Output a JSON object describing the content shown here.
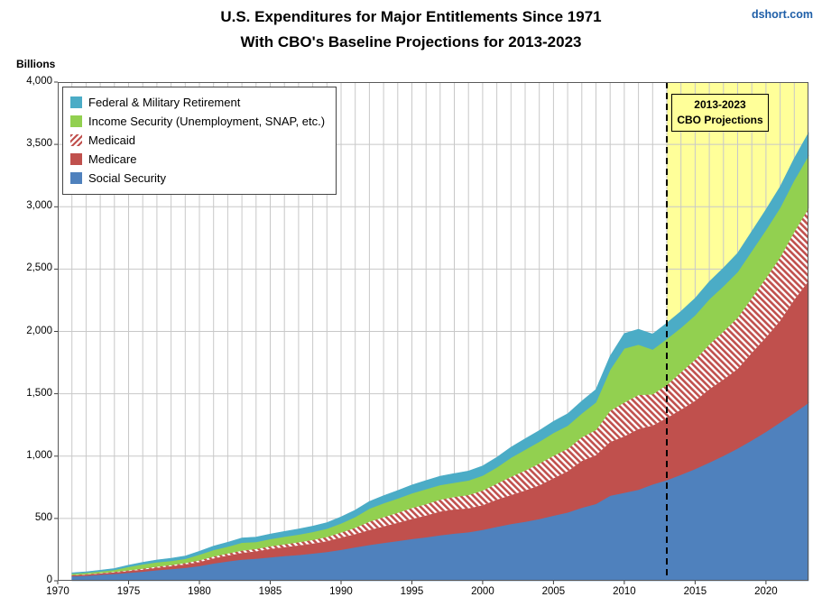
{
  "header": {
    "watermark": "dshort.com"
  },
  "chart_data": {
    "type": "area",
    "stacked": true,
    "title": "U.S. Expenditures for Major Entitlements Since 1971",
    "subtitle": "With CBO's Baseline Projections for 2013-2023",
    "ylabel": "Billions",
    "units": "billions of dollars",
    "x_start": 1971,
    "x_end": 2023,
    "x_axis": {
      "min": 1970,
      "max": 2023,
      "ticks": [
        {
          "value": 1970,
          "label": "1970"
        },
        {
          "value": 1975,
          "label": "1975"
        },
        {
          "value": 1980,
          "label": "1980"
        },
        {
          "value": 1985,
          "label": "1985"
        },
        {
          "value": 1990,
          "label": "1990"
        },
        {
          "value": 1995,
          "label": "1995"
        },
        {
          "value": 2000,
          "label": "2000"
        },
        {
          "value": 2005,
          "label": "2005"
        },
        {
          "value": 2010,
          "label": "2010"
        },
        {
          "value": 2015,
          "label": "2015"
        },
        {
          "value": 2020,
          "label": "2020"
        }
      ]
    },
    "y_axis": {
      "min": 0,
      "max": 4000,
      "step": 500,
      "ticks": [
        {
          "value": 0,
          "label": "0"
        },
        {
          "value": 500,
          "label": "500"
        },
        {
          "value": 1000,
          "label": "1,000"
        },
        {
          "value": 1500,
          "label": "1,500"
        },
        {
          "value": 2000,
          "label": "2,000"
        },
        {
          "value": 2500,
          "label": "2,500"
        },
        {
          "value": 3000,
          "label": "3,000"
        },
        {
          "value": 3500,
          "label": "3,500"
        },
        {
          "value": 4000,
          "label": "4,000"
        }
      ]
    },
    "grid": {
      "vertical_every_years": 1,
      "horizontal_every": 500,
      "color": "#C8C8C8",
      "border_color": "#595959"
    },
    "projection": {
      "start": 2013,
      "end": 2023,
      "fill": "#FFFF99",
      "line_color": "#000000",
      "label_line1": "2013-2023",
      "label_line2": "CBO Projections"
    },
    "series": [
      {
        "name": "Social Security",
        "color": "#4F81BD",
        "hatch": false,
        "values": [
          35.9,
          40.2,
          49.1,
          55.9,
          64.7,
          73.9,
          85.1,
          93.9,
          104.1,
          118.5,
          139.6,
          156,
          170.7,
          178.2,
          188.6,
          198.8,
          207.4,
          219.3,
          232.5,
          248.6,
          269,
          287.6,
          304.6,
          319.6,
          335.8,
          349.7,
          365.3,
          379.2,
          390,
          409.4,
          433,
          456,
          474.7,
          495.5,
          523.3,
          548.5,
          586.2,
          617,
          682.9,
          706.7,
          730.8,
          773.3,
          808,
          851,
          897,
          948,
          1003,
          1062,
          1127,
          1196,
          1270,
          1347,
          1428
        ]
      },
      {
        "name": "Medicare",
        "color": "#C0504D",
        "hatch": false,
        "values": [
          7.5,
          8.4,
          9,
          10.7,
          12.9,
          15.8,
          19.3,
          22.8,
          26.5,
          32.1,
          39.1,
          46.6,
          52.6,
          57.5,
          65.8,
          70.2,
          75.1,
          78.9,
          85,
          98.1,
          104.5,
          119,
          130.6,
          144.7,
          159.9,
          174.2,
          190,
          192.8,
          190.4,
          197.1,
          217.4,
          230.9,
          249.4,
          269.4,
          298.6,
          329.9,
          375.4,
          390.8,
          430.1,
          451.6,
          485.7,
          471.8,
          497.8,
          522,
          546,
          588,
          611,
          637,
          701,
          756,
          815,
          908,
          975
        ]
      },
      {
        "name": "Medicaid",
        "color": "#C0504D",
        "hatch": true,
        "values": [
          3.4,
          4.6,
          4.6,
          5.8,
          6.8,
          8.6,
          9.9,
          10.7,
          12.4,
          14,
          16.8,
          17.4,
          19,
          20.1,
          22.7,
          25,
          27.4,
          30.5,
          34.6,
          41.1,
          52.5,
          67.8,
          75.8,
          82,
          89.1,
          92,
          95.6,
          101.2,
          108,
          117.9,
          129.4,
          147.5,
          160.7,
          176.2,
          181.7,
          180.6,
          190.6,
          201.4,
          250.9,
          272.8,
          275,
          250.5,
          265.4,
          301,
          331,
          360,
          387,
          412,
          442,
          477,
          510,
          546,
          585
        ]
      },
      {
        "name": "Income Security (Unemployment, SNAP, etc.)",
        "color": "#92D050",
        "hatch": false,
        "values": [
          10,
          11.5,
          12.5,
          15,
          27,
          34,
          34,
          32,
          33,
          45,
          52,
          54,
          64,
          56,
          58,
          60,
          61,
          63,
          66,
          72,
          86,
          104,
          111,
          114,
          117,
          120,
          117,
          114,
          117,
          120,
          130,
          153,
          167,
          174,
          183,
          185,
          190,
          223,
          329,
          433,
          403,
          359,
          369,
          356,
          356,
          362,
          362,
          366,
          375,
          385,
          397,
          412,
          420
        ]
      },
      {
        "name": "Federal & Military Retirement",
        "color": "#4BACC6",
        "hatch": false,
        "values": [
          6.8,
          7.9,
          9.6,
          11.3,
          13.9,
          16.3,
          18.5,
          20.7,
          23.2,
          26.6,
          31,
          34.5,
          37.5,
          38.9,
          39.8,
          41.6,
          44,
          46.5,
          48.8,
          52.1,
          55,
          58.3,
          60.9,
          63.5,
          66.2,
          68.4,
          70.7,
          72.6,
          74.6,
          77.3,
          80.6,
          84,
          87.3,
          90,
          92.5,
          95.9,
          99.3,
          103,
          109.6,
          119,
          122.8,
          124.7,
          127,
          131,
          136,
          141,
          146,
          151,
          157,
          163,
          169,
          176,
          183
        ]
      }
    ],
    "legend_position": "top-left",
    "legend_order_top_to_bottom": [
      "Federal & Military Retirement",
      "Income Security (Unemployment, SNAP, etc.)",
      "Medicaid",
      "Medicare",
      "Social Security"
    ]
  }
}
